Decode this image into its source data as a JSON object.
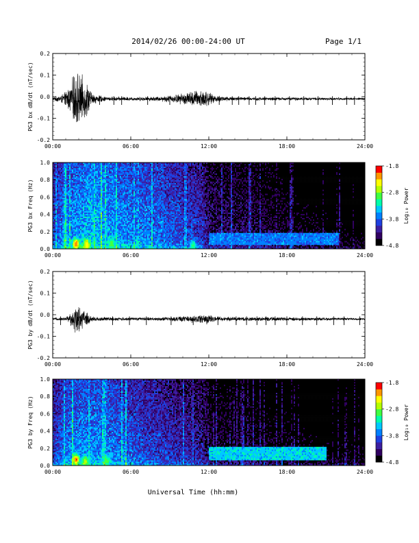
{
  "header": {
    "title": "2014/02/26  00:00-24:00 UT",
    "page": "Page 1/1"
  },
  "xaxis": {
    "ticks": [
      "00:00",
      "06:00",
      "12:00",
      "18:00",
      "24:00"
    ],
    "title": "Universal Time (hh:mm)"
  },
  "chart_data": [
    {
      "type": "line",
      "ylabel": "PG3 bx dB/dt (nT/sec)",
      "xlim": [
        0,
        24
      ],
      "ylim": [
        -0.2,
        0.2
      ],
      "yticks": [
        "0.2",
        "0.1",
        "0.0",
        "-0.1",
        "-0.2"
      ],
      "yticks_values": [
        0.2,
        0.1,
        0.0,
        -0.1,
        -0.2
      ],
      "x_unit": "hours UT",
      "envelope": [
        {
          "x": 0.0,
          "amp": 0.008
        },
        {
          "x": 0.6,
          "amp": 0.02
        },
        {
          "x": 0.9,
          "amp": 0.03
        },
        {
          "x": 1.4,
          "amp": 0.08
        },
        {
          "x": 1.8,
          "amp": 0.16
        },
        {
          "x": 2.1,
          "amp": 0.12
        },
        {
          "x": 2.6,
          "amp": 0.1
        },
        {
          "x": 3.0,
          "amp": 0.03
        },
        {
          "x": 4.0,
          "amp": 0.012
        },
        {
          "x": 6.0,
          "amp": 0.01
        },
        {
          "x": 8.0,
          "amp": 0.012
        },
        {
          "x": 9.3,
          "amp": 0.02
        },
        {
          "x": 10.0,
          "amp": 0.03
        },
        {
          "x": 11.0,
          "amp": 0.045
        },
        {
          "x": 11.7,
          "amp": 0.05
        },
        {
          "x": 12.3,
          "amp": 0.02
        },
        {
          "x": 14.0,
          "amp": 0.01
        },
        {
          "x": 18.0,
          "amp": 0.008
        },
        {
          "x": 24.0,
          "amp": 0.006
        }
      ],
      "offset": -0.01,
      "spikes": [
        1.0,
        3.6,
        4.7,
        5.3,
        7.3,
        9.0,
        12.8,
        13.8,
        14.3,
        15.1,
        15.6,
        16.3,
        17.1,
        18.2,
        19.3,
        20.4,
        21.5,
        22.6,
        23.2
      ]
    },
    {
      "type": "heatmap",
      "ylabel": "PG3 bx Freq (Hz)",
      "xlim": [
        0,
        24
      ],
      "ylim": [
        0,
        1.0
      ],
      "yticks": [
        "1.0",
        "0.8",
        "0.6",
        "0.4",
        "0.2",
        "0.0"
      ],
      "yticks_values": [
        1.0,
        0.8,
        0.6,
        0.4,
        0.2,
        0.0
      ],
      "colorbar": {
        "label": "Log₁₀ Power",
        "range": [
          -4.8,
          -1.8
        ],
        "ticks": [
          "-1.8",
          "-2.8",
          "-3.8",
          "-4.8"
        ],
        "ticks_values": [
          -1.8,
          -2.8,
          -3.8,
          -4.8
        ]
      },
      "colors": [
        "#000000",
        "#300060",
        "#3c1ea0",
        "#1e40e0",
        "#0080ff",
        "#00c8ff",
        "#00ffaa",
        "#40ff40",
        "#b4ff00",
        "#ffff00",
        "#ff9600",
        "#ff0000"
      ],
      "time_profile": [
        {
          "x": 0,
          "v": -3.9
        },
        {
          "x": 1,
          "v": -3.6
        },
        {
          "x": 2,
          "v": -3.5
        },
        {
          "x": 3,
          "v": -3.4
        },
        {
          "x": 4,
          "v": -3.5
        },
        {
          "x": 6,
          "v": -3.6
        },
        {
          "x": 8,
          "v": -3.7
        },
        {
          "x": 10,
          "v": -3.9
        },
        {
          "x": 11.5,
          "v": -4.0
        },
        {
          "x": 12,
          "v": -4.3
        },
        {
          "x": 15,
          "v": -4.4
        },
        {
          "x": 18,
          "v": -4.6
        },
        {
          "x": 21,
          "v": -4.75
        },
        {
          "x": 24,
          "v": -4.8
        }
      ],
      "hotspots": [
        {
          "x": 1.8,
          "f": 0.06,
          "v": -2.0
        },
        {
          "x": 2.6,
          "f": 0.05,
          "v": -2.4
        },
        {
          "x": 4.5,
          "f": 0.06,
          "v": -2.9
        },
        {
          "x": 10.8,
          "f": 0.04,
          "v": -3.0
        }
      ],
      "band": {
        "x0": 12,
        "x1": 22,
        "f0": 0.05,
        "f1": 0.18,
        "v": -3.7
      }
    },
    {
      "type": "line",
      "ylabel": "PG3 by dB/dt (nT/sec)",
      "xlim": [
        0,
        24
      ],
      "ylim": [
        -0.2,
        0.2
      ],
      "yticks": [
        "0.2",
        "0.1",
        "0.0",
        "-0.1",
        "-0.2"
      ],
      "yticks_values": [
        0.2,
        0.1,
        0.0,
        -0.1,
        -0.2
      ],
      "x_unit": "hours UT",
      "envelope": [
        {
          "x": 0.0,
          "amp": 0.006
        },
        {
          "x": 1.0,
          "amp": 0.01
        },
        {
          "x": 1.5,
          "amp": 0.04
        },
        {
          "x": 1.8,
          "amp": 0.08
        },
        {
          "x": 2.2,
          "amp": 0.06
        },
        {
          "x": 2.7,
          "amp": 0.03
        },
        {
          "x": 3.2,
          "amp": 0.012
        },
        {
          "x": 6.0,
          "amp": 0.008
        },
        {
          "x": 9.0,
          "amp": 0.01
        },
        {
          "x": 11.0,
          "amp": 0.02
        },
        {
          "x": 11.8,
          "amp": 0.03
        },
        {
          "x": 12.4,
          "amp": 0.012
        },
        {
          "x": 16.0,
          "amp": 0.01
        },
        {
          "x": 24.0,
          "amp": 0.006
        }
      ],
      "offset": -0.02,
      "spikes": [
        0.6,
        4.6,
        5.9,
        7.2,
        9.1,
        10.8,
        12.7,
        14.1,
        14.9,
        15.7,
        16.4,
        17.1,
        18.0,
        19.2,
        20.3,
        21.6,
        22.4,
        23.6
      ]
    },
    {
      "type": "heatmap",
      "ylabel": "PG3 by Freq (Hz)",
      "xlim": [
        0,
        24
      ],
      "ylim": [
        0,
        1.0
      ],
      "yticks": [
        "1.0",
        "0.8",
        "0.6",
        "0.4",
        "0.2",
        "0.0"
      ],
      "yticks_values": [
        1.0,
        0.8,
        0.6,
        0.4,
        0.2,
        0.0
      ],
      "colorbar": {
        "label": "Log₁₀ Power",
        "range": [
          -4.8,
          -1.8
        ],
        "ticks": [
          "-1.8",
          "-2.8",
          "-3.8",
          "-4.8"
        ],
        "ticks_values": [
          -1.8,
          -2.8,
          -3.8,
          -4.8
        ]
      },
      "colors": [
        "#000000",
        "#300060",
        "#3c1ea0",
        "#1e40e0",
        "#0080ff",
        "#00c8ff",
        "#00ffaa",
        "#40ff40",
        "#b4ff00",
        "#ffff00",
        "#ff9600",
        "#ff0000"
      ],
      "time_profile": [
        {
          "x": 0,
          "v": -4.0
        },
        {
          "x": 1,
          "v": -3.7
        },
        {
          "x": 2,
          "v": -3.6
        },
        {
          "x": 3,
          "v": -3.6
        },
        {
          "x": 5,
          "v": -3.7
        },
        {
          "x": 7,
          "v": -3.9
        },
        {
          "x": 10,
          "v": -4.1
        },
        {
          "x": 11.5,
          "v": -4.2
        },
        {
          "x": 12,
          "v": -4.5
        },
        {
          "x": 16,
          "v": -4.6
        },
        {
          "x": 20,
          "v": -4.75
        },
        {
          "x": 24,
          "v": -4.8
        }
      ],
      "hotspots": [
        {
          "x": 1.8,
          "f": 0.07,
          "v": -2.0
        },
        {
          "x": 2.5,
          "f": 0.05,
          "v": -2.6
        },
        {
          "x": 4.2,
          "f": 0.06,
          "v": -3.0
        }
      ],
      "band": {
        "x0": 12,
        "x1": 21,
        "f0": 0.06,
        "f1": 0.22,
        "v": -3.4
      }
    }
  ]
}
